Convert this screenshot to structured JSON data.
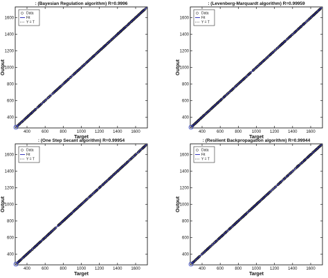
{
  "chart_data": [
    {
      "type": "scatter",
      "title": ": (Bayesian Regulation algorithm)     R=0.9996",
      "xlabel": "Target",
      "ylabel": "Output",
      "xlim": [
        270,
        1730
      ],
      "ylim": [
        270,
        1730
      ],
      "xticks": [
        "400",
        "600",
        "800",
        "1000",
        "1200",
        "1400",
        "1600"
      ],
      "yticks": [
        "400",
        "600",
        "800",
        "1000",
        "1200",
        "1400",
        "1600"
      ],
      "legend": {
        "position": "top-left",
        "entries": [
          "Data",
          "Fit",
          "Y = T"
        ]
      },
      "r": 0.9996,
      "series": [
        {
          "name": "Data",
          "marker": "circle",
          "x_range": [
            290,
            1720
          ],
          "relation": "y≈x"
        },
        {
          "name": "Fit",
          "line": "solid",
          "color": "#1f1fb4"
        },
        {
          "name": "Y = T",
          "line": "dotted",
          "color": "#444444"
        }
      ]
    },
    {
      "type": "scatter",
      "title": ": (Levenberg-Marquardt algorithm)  R=0.99959",
      "xlabel": "Target",
      "ylabel": "Output",
      "xlim": [
        270,
        1730
      ],
      "ylim": [
        270,
        1730
      ],
      "xticks": [
        "400",
        "600",
        "800",
        "1000",
        "1200",
        "1400",
        "1600"
      ],
      "yticks": [
        "400",
        "600",
        "800",
        "1000",
        "1200",
        "1400",
        "1600"
      ],
      "legend": {
        "position": "top-left",
        "entries": [
          "Data",
          "Fit",
          "Y = T"
        ]
      },
      "r": 0.99959,
      "series": [
        {
          "name": "Data",
          "marker": "circle",
          "x_range": [
            290,
            1720
          ],
          "relation": "y≈x"
        },
        {
          "name": "Fit",
          "line": "solid",
          "color": "#1f1fb4"
        },
        {
          "name": "Y = T",
          "line": "dotted",
          "color": "#444444"
        }
      ]
    },
    {
      "type": "scatter",
      "title": ": (One Step Secant algorithm)     R=0.99954",
      "xlabel": "Target",
      "ylabel": "Output",
      "xlim": [
        270,
        1730
      ],
      "ylim": [
        270,
        1730
      ],
      "xticks": [
        "400",
        "600",
        "800",
        "1000",
        "1200",
        "1400",
        "1600"
      ],
      "yticks": [
        "400",
        "600",
        "800",
        "1000",
        "1200",
        "1400",
        "1600"
      ],
      "legend": {
        "position": "top-left",
        "entries": [
          "Data",
          "Fit",
          "Y = T"
        ]
      },
      "r": 0.99954,
      "series": [
        {
          "name": "Data",
          "marker": "circle",
          "x_range": [
            290,
            1720
          ],
          "relation": "y≈x"
        },
        {
          "name": "Fit",
          "line": "solid",
          "color": "#1f1fb4"
        },
        {
          "name": "Y = T",
          "line": "dotted",
          "color": "#444444"
        }
      ]
    },
    {
      "type": "scatter",
      "title": ": (Resilient Backpropagation algorithm)   R=0.99944",
      "xlabel": "Target",
      "ylabel": "Output",
      "xlim": [
        270,
        1730
      ],
      "ylim": [
        270,
        1730
      ],
      "xticks": [
        "400",
        "600",
        "800",
        "1000",
        "1200",
        "1400",
        "1600"
      ],
      "yticks": [
        "400",
        "600",
        "800",
        "1000",
        "1200",
        "1400",
        "1600"
      ],
      "legend": {
        "position": "top-left",
        "entries": [
          "Data",
          "Fit",
          "Y = T"
        ]
      },
      "r": 0.99944,
      "series": [
        {
          "name": "Data",
          "marker": "circle",
          "x_range": [
            290,
            1720
          ],
          "relation": "y≈x"
        },
        {
          "name": "Fit",
          "line": "solid",
          "color": "#1f1fb4"
        },
        {
          "name": "Y = T",
          "line": "dotted",
          "color": "#444444"
        }
      ]
    }
  ]
}
